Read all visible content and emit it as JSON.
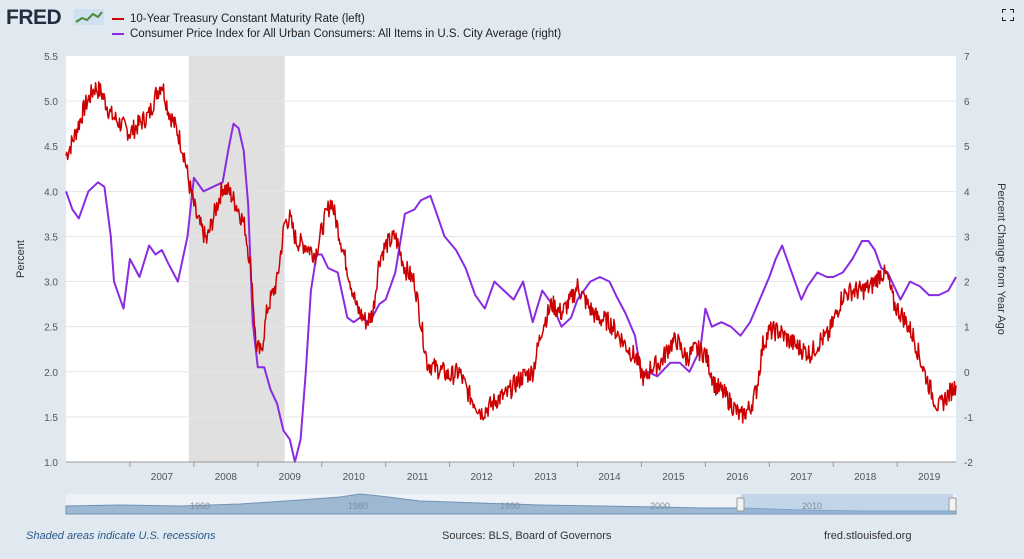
{
  "brand": {
    "logo_text": "FRED"
  },
  "legend": {
    "series1": "10-Year Treasury Constant Maturity Rate (left)",
    "series2": "Consumer Price Index for All Urban Consumers: All Items in U.S. City Average (right)"
  },
  "footer": {
    "recession_note": "Shaded areas indicate U.S. recessions",
    "sources": "Sources: BLS, Board of Governors",
    "site": "fred.stlouisfed.org"
  },
  "colors": {
    "series1": "#cc0000",
    "series2": "#8a2be2",
    "recession": "#e0e0e0"
  },
  "chart_data": {
    "type": "line",
    "x_range": [
      2006.0,
      2019.92
    ],
    "left_axis": {
      "label": "Percent",
      "range": [
        1.0,
        5.5
      ],
      "ticks": [
        "5.5",
        "5.0",
        "4.5",
        "4.0",
        "3.5",
        "3.0",
        "2.5",
        "2.0",
        "1.5",
        "1.0"
      ]
    },
    "right_axis": {
      "label": "Percent Change from Year Ago",
      "range": [
        -2,
        7
      ],
      "ticks": [
        "7",
        "6",
        "5",
        "4",
        "3",
        "2",
        "1",
        "0",
        "-1",
        "-2"
      ]
    },
    "x_ticks": [
      "2007",
      "2008",
      "2009",
      "2010",
      "2011",
      "2012",
      "2013",
      "2014",
      "2015",
      "2016",
      "2017",
      "2018",
      "2019"
    ],
    "recessions": [
      [
        2007.92,
        2009.42
      ]
    ],
    "navigator_labels": [
      "1960",
      "1980",
      "1990",
      "2000",
      "2010"
    ],
    "series": [
      {
        "name": "10-Year Treasury Constant Maturity Rate (left)",
        "axis": "left",
        "x": [
          2006.0,
          2006.1,
          2006.3,
          2006.45,
          2006.55,
          2006.7,
          2006.85,
          2007.0,
          2007.15,
          2007.3,
          2007.42,
          2007.5,
          2007.6,
          2007.75,
          2007.85,
          2007.92,
          2008.05,
          2008.2,
          2008.3,
          2008.45,
          2008.55,
          2008.7,
          2008.8,
          2008.9,
          2008.97,
          2009.05,
          2009.15,
          2009.3,
          2009.42,
          2009.5,
          2009.6,
          2009.75,
          2009.9,
          2010.05,
          2010.15,
          2010.25,
          2010.4,
          2010.55,
          2010.7,
          2010.8,
          2010.9,
          2011.0,
          2011.15,
          2011.3,
          2011.45,
          2011.55,
          2011.65,
          2011.75,
          2011.9,
          2012.0,
          2012.15,
          2012.3,
          2012.5,
          2012.6,
          2012.75,
          2012.9,
          2013.0,
          2013.15,
          2013.3,
          2013.45,
          2013.6,
          2013.75,
          2013.9,
          2014.0,
          2014.15,
          2014.3,
          2014.5,
          2014.65,
          2014.8,
          2014.92,
          2015.05,
          2015.15,
          2015.3,
          2015.45,
          2015.55,
          2015.7,
          2015.85,
          2016.0,
          2016.15,
          2016.3,
          2016.45,
          2016.55,
          2016.7,
          2016.8,
          2016.9,
          2017.0,
          2017.15,
          2017.3,
          2017.5,
          2017.65,
          2017.8,
          2017.92,
          2018.05,
          2018.15,
          2018.3,
          2018.45,
          2018.6,
          2018.75,
          2018.85,
          2018.95,
          2019.1,
          2019.25,
          2019.4,
          2019.55,
          2019.65,
          2019.8,
          2019.92
        ],
        "values": [
          4.4,
          4.55,
          4.95,
          5.15,
          5.1,
          4.85,
          4.75,
          4.65,
          4.75,
          4.85,
          5.1,
          5.2,
          4.9,
          4.65,
          4.4,
          4.1,
          3.7,
          3.45,
          3.7,
          4.05,
          4.0,
          3.8,
          3.6,
          3.1,
          2.3,
          2.2,
          2.7,
          3.0,
          3.65,
          3.7,
          3.45,
          3.4,
          3.3,
          3.7,
          3.9,
          3.6,
          3.15,
          2.7,
          2.55,
          2.65,
          3.25,
          3.4,
          3.5,
          3.15,
          3.0,
          2.55,
          2.1,
          2.05,
          2.0,
          1.95,
          2.0,
          1.75,
          1.55,
          1.6,
          1.7,
          1.75,
          1.85,
          1.95,
          2.0,
          2.5,
          2.75,
          2.65,
          2.8,
          2.95,
          2.75,
          2.6,
          2.55,
          2.4,
          2.25,
          2.15,
          1.9,
          2.05,
          2.1,
          2.3,
          2.35,
          2.15,
          2.25,
          2.2,
          1.85,
          1.75,
          1.6,
          1.5,
          1.6,
          1.8,
          2.3,
          2.45,
          2.45,
          2.35,
          2.25,
          2.2,
          2.35,
          2.4,
          2.65,
          2.85,
          2.9,
          2.9,
          2.95,
          3.1,
          3.05,
          2.75,
          2.6,
          2.4,
          2.05,
          1.75,
          1.6,
          1.75,
          1.85
        ]
      },
      {
        "name": "Consumer Price Index for All Urban Consumers: All Items in U.S. City Average (right)",
        "axis": "right",
        "x": [
          2006.0,
          2006.1,
          2006.2,
          2006.35,
          2006.5,
          2006.6,
          2006.7,
          2006.75,
          2006.9,
          2007.0,
          2007.15,
          2007.3,
          2007.4,
          2007.5,
          2007.6,
          2007.75,
          2007.9,
          2008.0,
          2008.15,
          2008.3,
          2008.45,
          2008.55,
          2008.62,
          2008.7,
          2008.78,
          2008.85,
          2008.92,
          2009.0,
          2009.1,
          2009.2,
          2009.3,
          2009.4,
          2009.5,
          2009.58,
          2009.67,
          2009.75,
          2009.83,
          2009.92,
          2010.0,
          2010.1,
          2010.25,
          2010.4,
          2010.5,
          2010.6,
          2010.75,
          2010.9,
          2011.0,
          2011.15,
          2011.3,
          2011.45,
          2011.55,
          2011.7,
          2011.8,
          2011.92,
          2012.1,
          2012.25,
          2012.4,
          2012.55,
          2012.7,
          2012.85,
          2013.0,
          2013.15,
          2013.3,
          2013.45,
          2013.6,
          2013.75,
          2013.9,
          2014.0,
          2014.2,
          2014.35,
          2014.5,
          2014.6,
          2014.75,
          2014.9,
          2015.0,
          2015.1,
          2015.25,
          2015.45,
          2015.6,
          2015.75,
          2015.92,
          2016.0,
          2016.1,
          2016.25,
          2016.4,
          2016.55,
          2016.7,
          2016.85,
          2017.0,
          2017.1,
          2017.2,
          2017.35,
          2017.5,
          2017.6,
          2017.75,
          2017.9,
          2018.0,
          2018.15,
          2018.3,
          2018.45,
          2018.55,
          2018.65,
          2018.75,
          2018.85,
          2018.95,
          2019.05,
          2019.2,
          2019.35,
          2019.5,
          2019.65,
          2019.8,
          2019.92
        ],
        "values": [
          4.0,
          3.6,
          3.4,
          4.0,
          4.2,
          4.1,
          3.0,
          2.0,
          1.4,
          2.5,
          2.1,
          2.8,
          2.6,
          2.7,
          2.4,
          2.0,
          3.0,
          4.3,
          4.0,
          4.1,
          4.2,
          5.0,
          5.5,
          5.4,
          4.9,
          3.7,
          1.1,
          0.1,
          0.1,
          -0.4,
          -0.7,
          -1.3,
          -1.5,
          -2.0,
          -1.5,
          0.0,
          1.8,
          2.6,
          2.6,
          2.3,
          2.2,
          1.2,
          1.1,
          1.2,
          1.1,
          1.5,
          1.6,
          2.2,
          3.5,
          3.6,
          3.8,
          3.9,
          3.5,
          3.0,
          2.7,
          2.3,
          1.7,
          1.4,
          2.0,
          1.8,
          1.6,
          2.0,
          1.1,
          1.8,
          1.5,
          1.0,
          1.2,
          1.6,
          2.0,
          2.1,
          2.0,
          1.7,
          1.3,
          0.8,
          -0.1,
          0.0,
          -0.1,
          0.2,
          0.2,
          0.0,
          0.5,
          1.4,
          1.0,
          1.1,
          1.0,
          0.8,
          1.1,
          1.6,
          2.1,
          2.5,
          2.8,
          2.2,
          1.6,
          1.9,
          2.2,
          2.1,
          2.1,
          2.2,
          2.5,
          2.9,
          2.9,
          2.7,
          2.3,
          2.2,
          1.9,
          1.6,
          2.0,
          1.9,
          1.7,
          1.7,
          1.8,
          2.1
        ]
      }
    ]
  }
}
